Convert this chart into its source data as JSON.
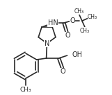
{
  "bg_color": "#ffffff",
  "line_color": "#2a2a2a",
  "lw": 1.2,
  "figsize": [
    1.61,
    1.37
  ],
  "dpi": 100,
  "xlim": [
    0,
    161
  ],
  "ylim": [
    0,
    137
  ]
}
